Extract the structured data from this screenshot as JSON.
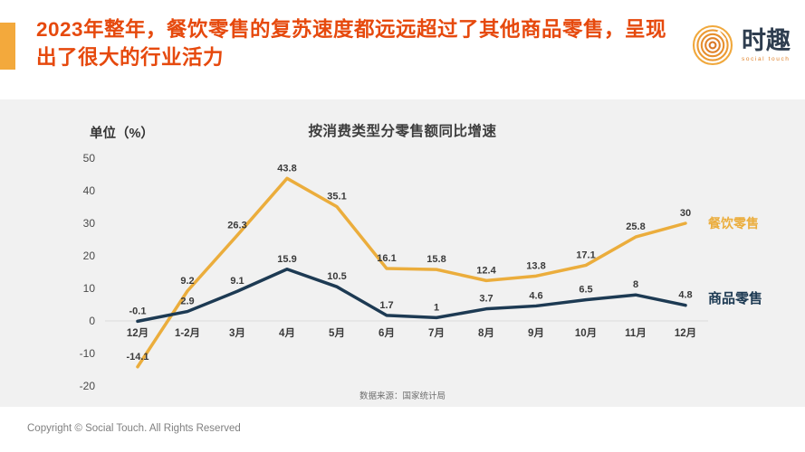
{
  "colors": {
    "accent_bar": "#F3A93C",
    "title_red": "#E6490D",
    "catering_line": "#EBAD3C",
    "goods_line": "#1D3A53",
    "section_bg": "#F1F1F1",
    "logo_navy": "#2E3D4F",
    "logo_orange": "#E0822A"
  },
  "header": {
    "title": "2023年整年，餐饮零售的复苏速度都远远超过了其他商品零售，呈现出了很大的行业活力",
    "logo": {
      "name": "时趣",
      "subtitle": "social touch"
    }
  },
  "chart_data": {
    "type": "line",
    "title": "按消费类型分零售额同比增速",
    "unit_label": "单位（%）",
    "categories": [
      "12月",
      "1-2月",
      "3月",
      "4月",
      "5月",
      "6月",
      "7月",
      "8月",
      "9月",
      "10月",
      "11月",
      "12月"
    ],
    "series": [
      {
        "name": "餐饮零售",
        "color": "#EBAD3C",
        "values": [
          -14.1,
          9.2,
          26.3,
          43.8,
          35.1,
          16.1,
          15.8,
          12.4,
          13.8,
          17.1,
          25.8,
          30
        ]
      },
      {
        "name": "商品零售",
        "color": "#1D3A53",
        "values": [
          -0.1,
          2.9,
          9.1,
          15.9,
          10.5,
          1.7,
          1,
          3.7,
          4.6,
          6.5,
          8,
          4.8
        ]
      }
    ],
    "y_ticks": [
      50,
      40,
      30,
      20,
      10,
      0,
      -10,
      -20
    ],
    "ylim": [
      -20,
      50
    ],
    "grid": "zero-line-only",
    "legend_position": "right",
    "source": "数据来源：国家统计局"
  },
  "footer": {
    "copyright": "Copyright © Social Touch. All Rights Reserved"
  }
}
